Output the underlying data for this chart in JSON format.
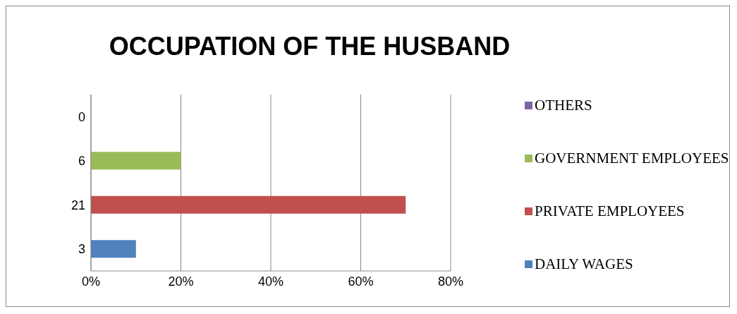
{
  "chart_data": {
    "type": "bar",
    "orientation": "horizontal",
    "stacked": true,
    "title": "OCCUPATION OF THE HUSBAND",
    "categories": [
      "0",
      "6",
      "21",
      "3"
    ],
    "series": [
      {
        "name": "OTHERS",
        "color": "#8064a2",
        "values": [
          0,
          null,
          null,
          null
        ]
      },
      {
        "name": "GOVERNMENT EMPLOYEES",
        "color": "#9bbb59",
        "values": [
          null,
          20,
          null,
          null
        ]
      },
      {
        "name": "PRIVATE EMPLOYEES",
        "color": "#c0504d",
        "values": [
          null,
          null,
          70,
          null
        ]
      },
      {
        "name": "DAILY WAGES",
        "color": "#4f81bd",
        "values": [
          null,
          null,
          null,
          10
        ]
      }
    ],
    "xlim": [
      0,
      80
    ],
    "xticks": [
      {
        "value": 0,
        "label": "0%"
      },
      {
        "value": 20,
        "label": "20%"
      },
      {
        "value": 40,
        "label": "40%"
      },
      {
        "value": 60,
        "label": "60%"
      },
      {
        "value": 80,
        "label": "80%"
      }
    ],
    "grid": "x",
    "legend": "right"
  }
}
